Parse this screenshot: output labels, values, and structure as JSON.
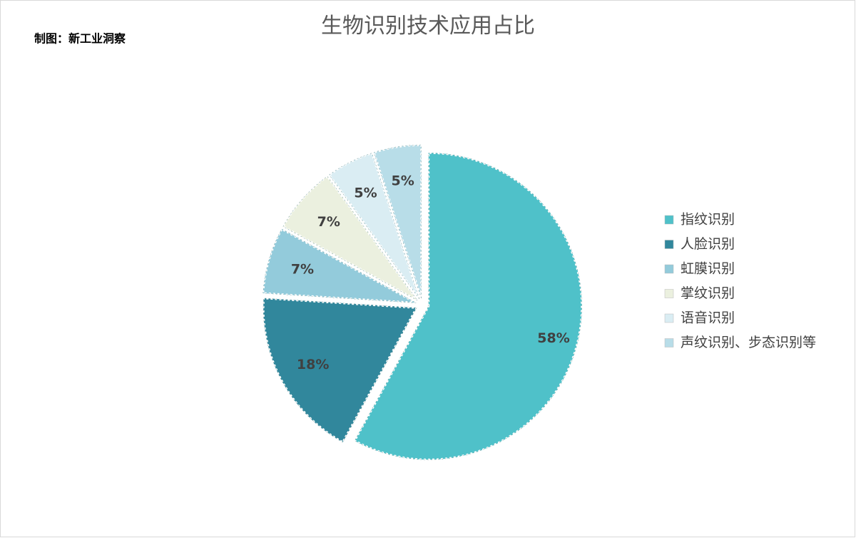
{
  "chart_data": {
    "type": "pie",
    "title": "生物识别技术应用占比",
    "subtitle": "制图：新工业洞察",
    "categories": [
      "指纹识别",
      "人脸识别",
      "虹膜识别",
      "掌纹识别",
      "语音识别",
      "声纹识别、步态识别等"
    ],
    "values": [
      58,
      18,
      7,
      7,
      5,
      5
    ],
    "value_labels": [
      "58%",
      "18%",
      "7%",
      "7%",
      "5%",
      "5%"
    ],
    "colors": [
      "#4fc1c9",
      "#31879c",
      "#93cbdb",
      "#ebf0df",
      "#daedf3",
      "#b8dde8"
    ],
    "legend": "right"
  }
}
